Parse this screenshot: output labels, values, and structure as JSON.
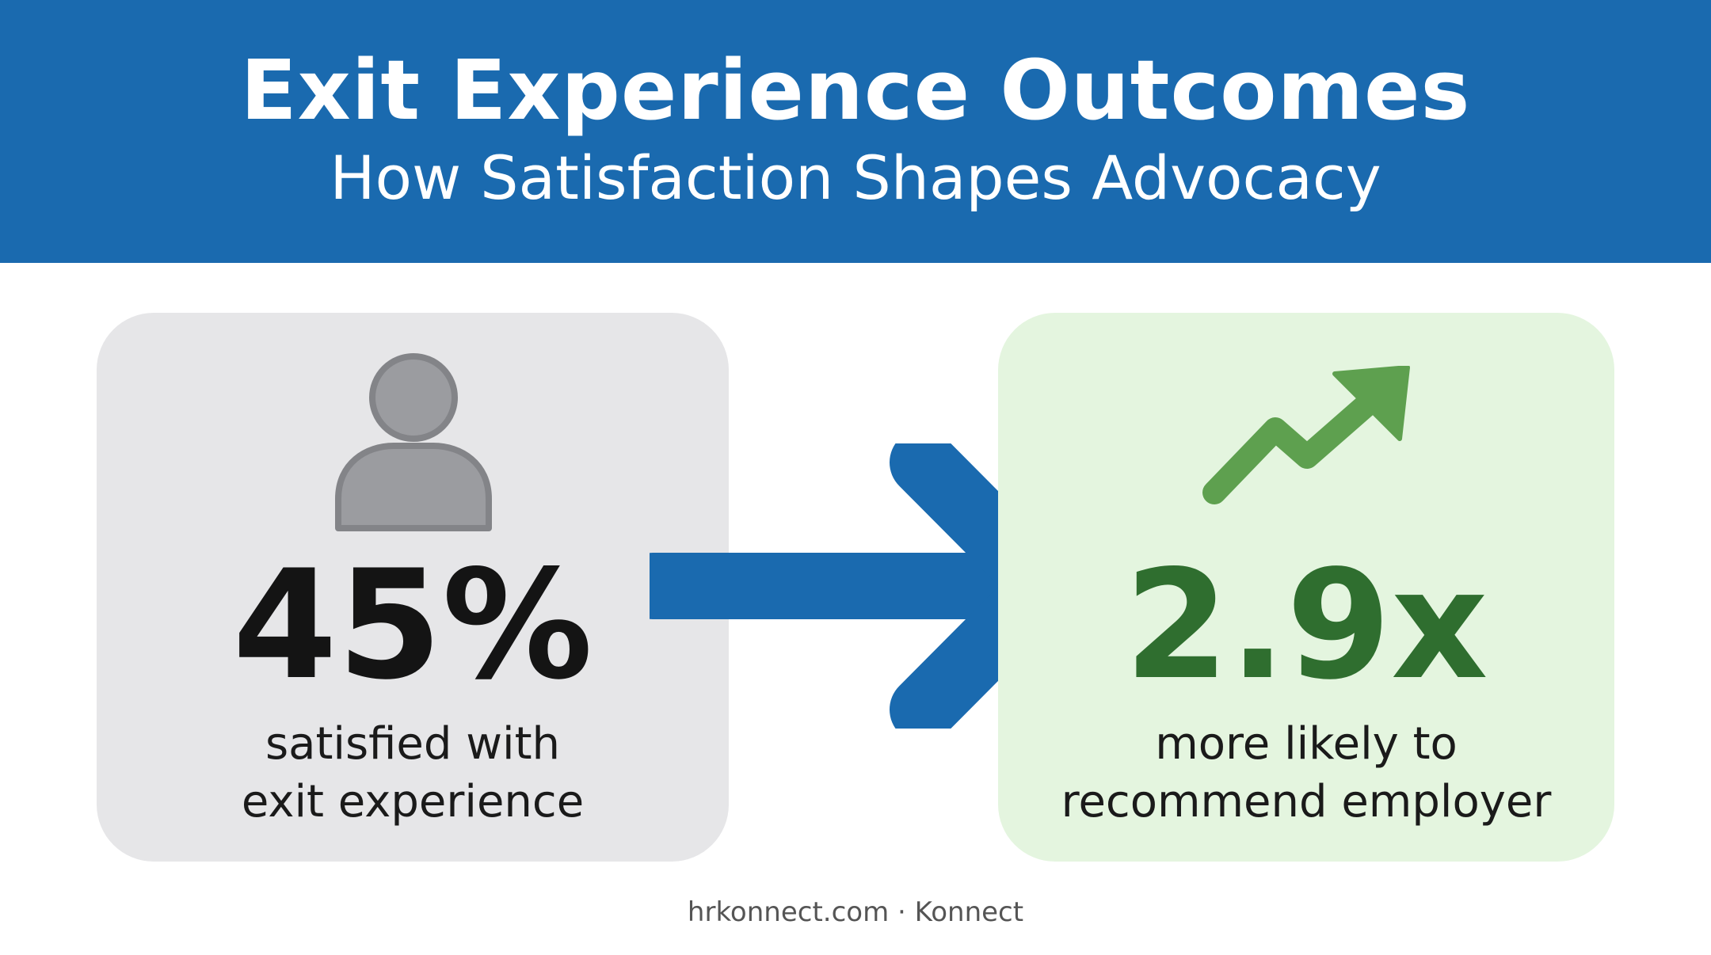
{
  "header": {
    "title": "Exit Experience Outcomes",
    "subtitle": "How Satisfaction Shapes Advocacy"
  },
  "left_card": {
    "icon": "person-icon",
    "stat": "45%",
    "caption_line1": "satisfied with",
    "caption_line2": "exit experience"
  },
  "right_card": {
    "icon": "trend-up-icon",
    "stat": "2.9x",
    "caption_line1": "more likely to",
    "caption_line2": "recommend employer"
  },
  "connector": {
    "icon": "arrow-right-icon"
  },
  "footer": {
    "text": "hrkonnect.com · Konnect"
  },
  "colors": {
    "header_bg": "#1a6aaf",
    "left_card_bg": "#e6e6e8",
    "right_card_bg": "#e4f5df",
    "arrow": "#1a6aaf",
    "stat_right": "#2f6e2f",
    "trend_icon": "#5ea04f",
    "person_icon": "#9b9ca0"
  }
}
